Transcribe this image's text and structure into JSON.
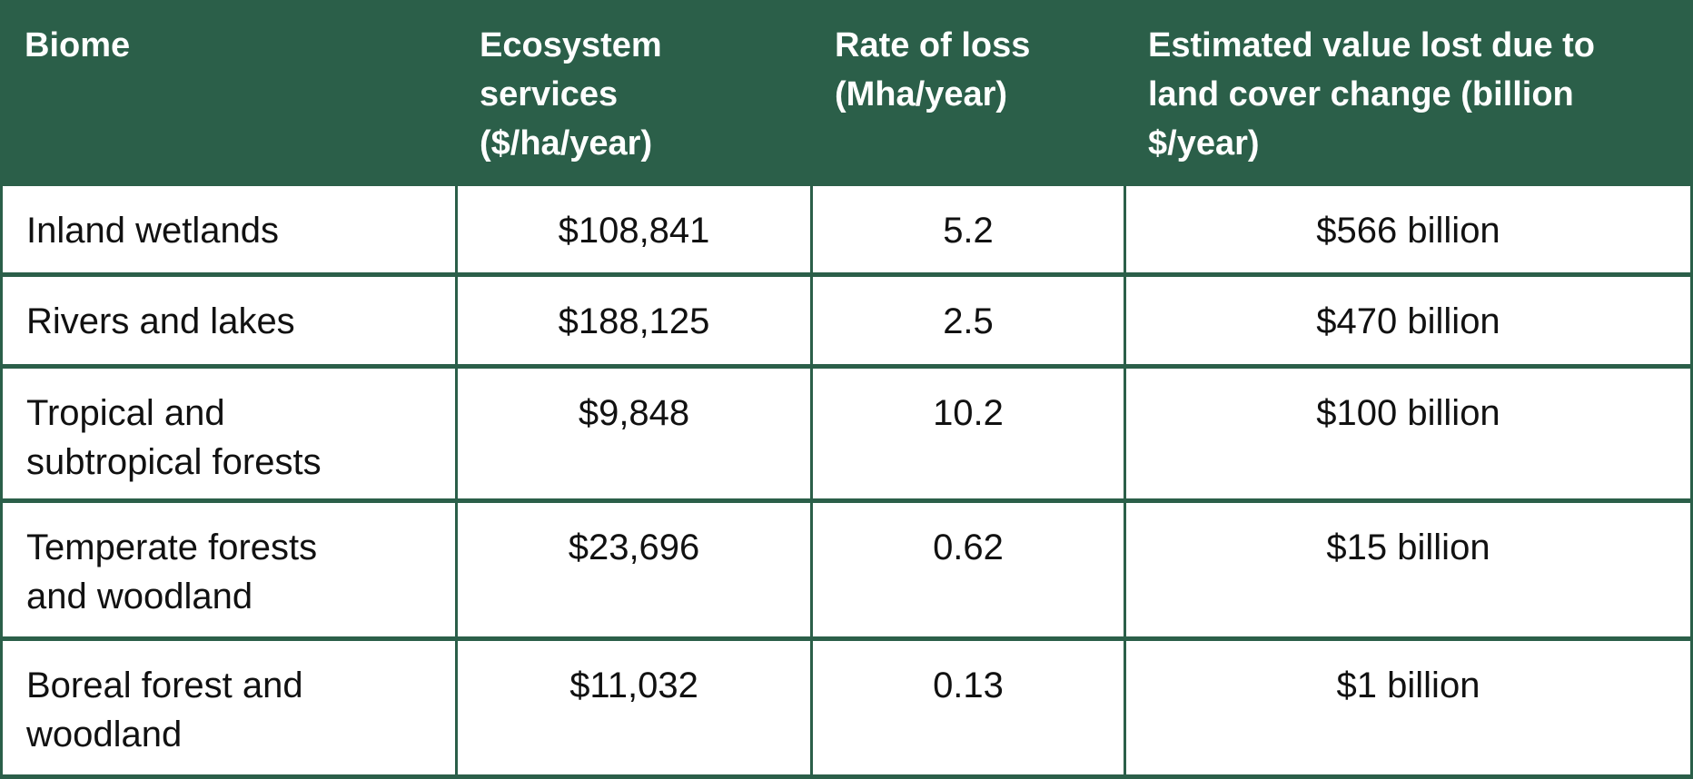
{
  "theme": {
    "header_bg": "#2B5F49",
    "border_color": "#2B5F49",
    "header_text_color": "#FFFFFF",
    "cell_bg": "#FFFFFF",
    "cell_text_color": "#111111"
  },
  "chart_data": {
    "type": "table",
    "title": "",
    "legend": [],
    "grid": "green rules between white cells, solid green header band",
    "columns": [
      "Biome",
      "Ecosystem services ($/ha/year)",
      "Rate of loss (Mha/year)",
      "Estimated value lost due to land cover change (billion $/year)"
    ],
    "rows": [
      [
        "Inland wetlands",
        "$108,841",
        "5.2",
        "$566 billion"
      ],
      [
        "Rivers and lakes",
        "$188,125",
        "2.5",
        "$470 billion"
      ],
      [
        "Tropical and subtropical forests",
        "$9,848",
        "10.2",
        "$100 billion"
      ],
      [
        "Temperate forests and woodland",
        "$23,696",
        "0.62",
        "$15 billion"
      ],
      [
        "Boreal forest and woodland",
        "$11,032",
        "0.13",
        "$1 billion"
      ]
    ],
    "numeric": {
      "biomes": [
        "Inland wetlands",
        "Rivers and lakes",
        "Tropical and subtropical forests",
        "Temperate forests and woodland",
        "Boreal forest and woodland"
      ],
      "ecosystem_services_usd_per_ha_year": [
        108841,
        188125,
        9848,
        23696,
        11032
      ],
      "rate_of_loss_mha_per_year": [
        5.2,
        2.5,
        10.2,
        0.62,
        0.13
      ],
      "estimated_value_lost_billion_usd_per_year": [
        566,
        470,
        100,
        15,
        1
      ]
    }
  }
}
